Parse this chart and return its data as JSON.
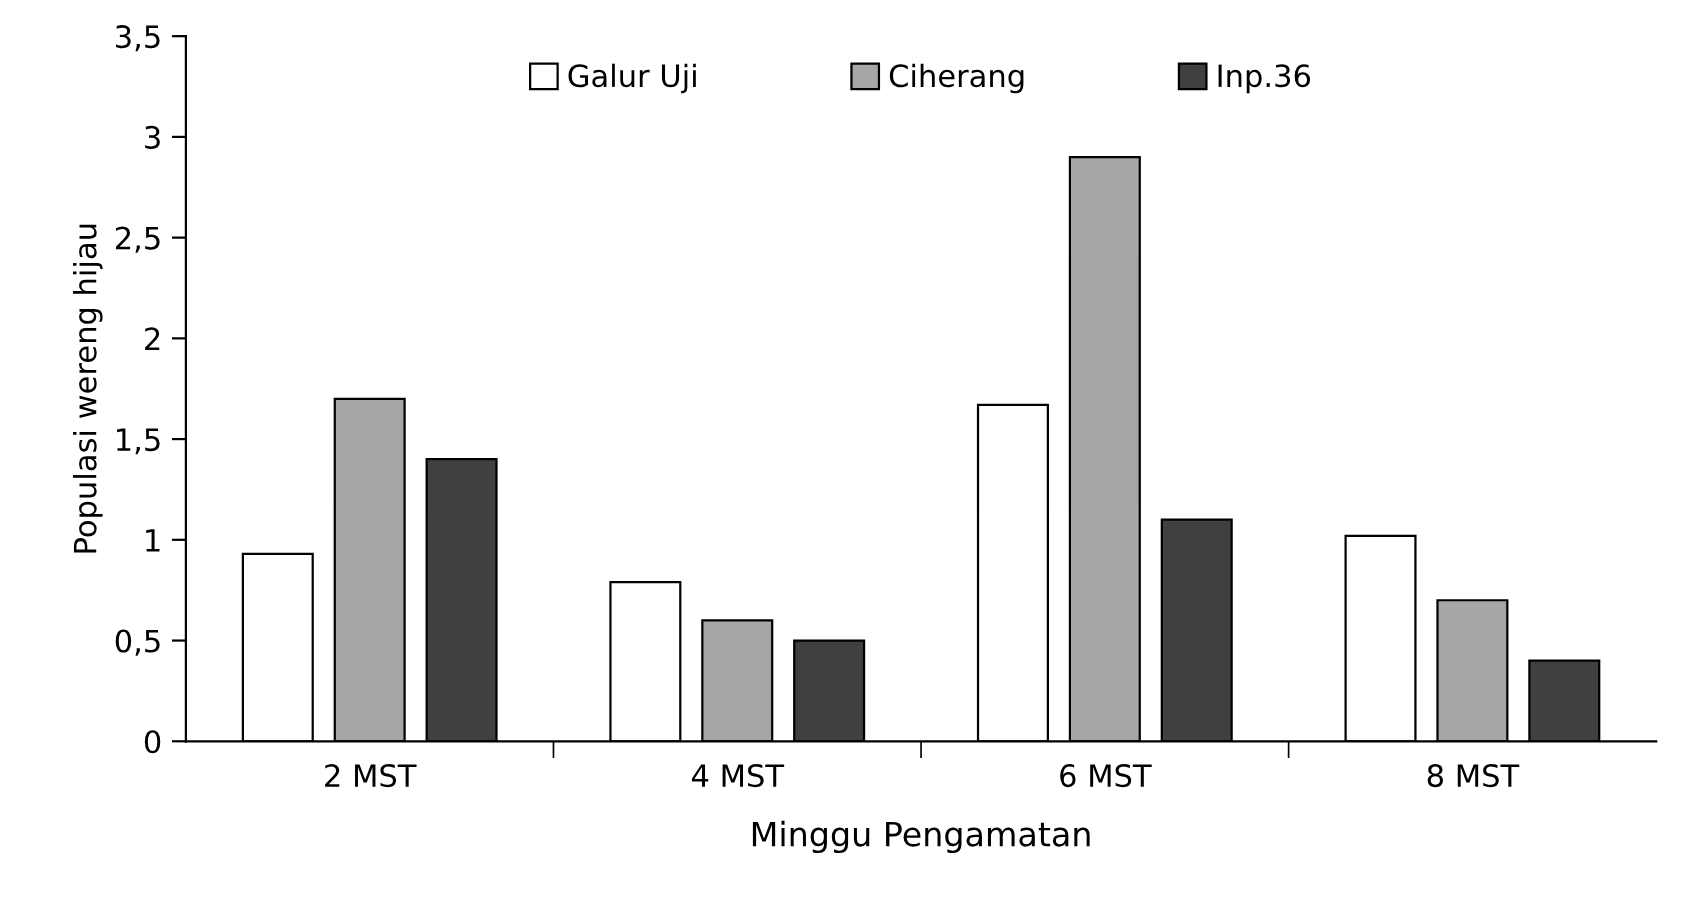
{
  "chart_data": {
    "type": "bar",
    "xlabel": "Minggu Pengamatan",
    "ylabel": "Populasi wereng hijau",
    "categories": [
      "2 MST",
      "4 MST",
      "6 MST",
      "8 MST"
    ],
    "series": [
      {
        "name": "Galur Uji",
        "color": "#ffffff",
        "values": [
          0.93,
          0.79,
          1.67,
          1.02
        ]
      },
      {
        "name": "Ciherang",
        "color": "#a6a6a6",
        "values": [
          1.7,
          0.6,
          2.9,
          0.7
        ]
      },
      {
        "name": "Inp.36",
        "color": "#404040",
        "values": [
          1.4,
          0.5,
          1.1,
          0.4
        ]
      }
    ],
    "ylim": [
      0,
      3.5
    ],
    "yticks": [
      0,
      {
        "value": 0.5,
        "label": "0,5"
      },
      1,
      {
        "value": 1.5,
        "label": "1,5"
      },
      2,
      {
        "value": 2.5,
        "label": "2,5"
      },
      3,
      {
        "value": 3.5,
        "label": "3,5"
      }
    ],
    "grid": false,
    "legend": "top"
  }
}
